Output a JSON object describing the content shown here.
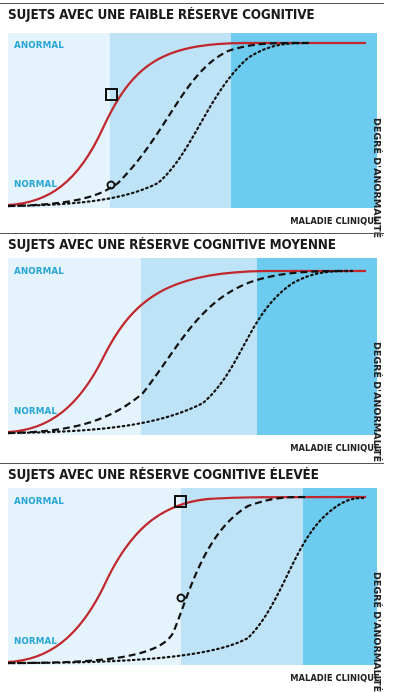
{
  "panels": [
    {
      "title": "SUJETS AVEC UNE FAIBLE RÉSERVE COGNITIVE",
      "label_top": "ANORMAL",
      "label_bottom": "NORMAL",
      "x_label": "MALADIE CLINIQUE",
      "y_label": "DEGRÉ D'ANORMALITÉ"
    },
    {
      "title": "SUJETS AVEC UNE RÉSERVE COGNITIVE MOYENNE",
      "label_top": "ANORMAL",
      "label_bottom": "NORMAL",
      "x_label": "MALADIE CLINIQUE",
      "y_label": "DEGRÉ D'ANORMALITÉ"
    },
    {
      "title": "SUJETS AVEC UNE RÉSERVE COGNITIVE ÉLEVÉE",
      "label_top": "ANORMAL",
      "label_bottom": "NORMAL",
      "x_label": "MALADIE CLINIQUE",
      "y_label": "DEGRÉ D'ANORMALITÉ"
    }
  ],
  "colors": {
    "zone_light": "#e4f3fc",
    "zone_mid": "#bfe3f6",
    "zone_dark": "#6ccbee",
    "curve_red": "#c0282e",
    "curve_black": "#111111",
    "label_blue": "#2aa6d6"
  }
}
